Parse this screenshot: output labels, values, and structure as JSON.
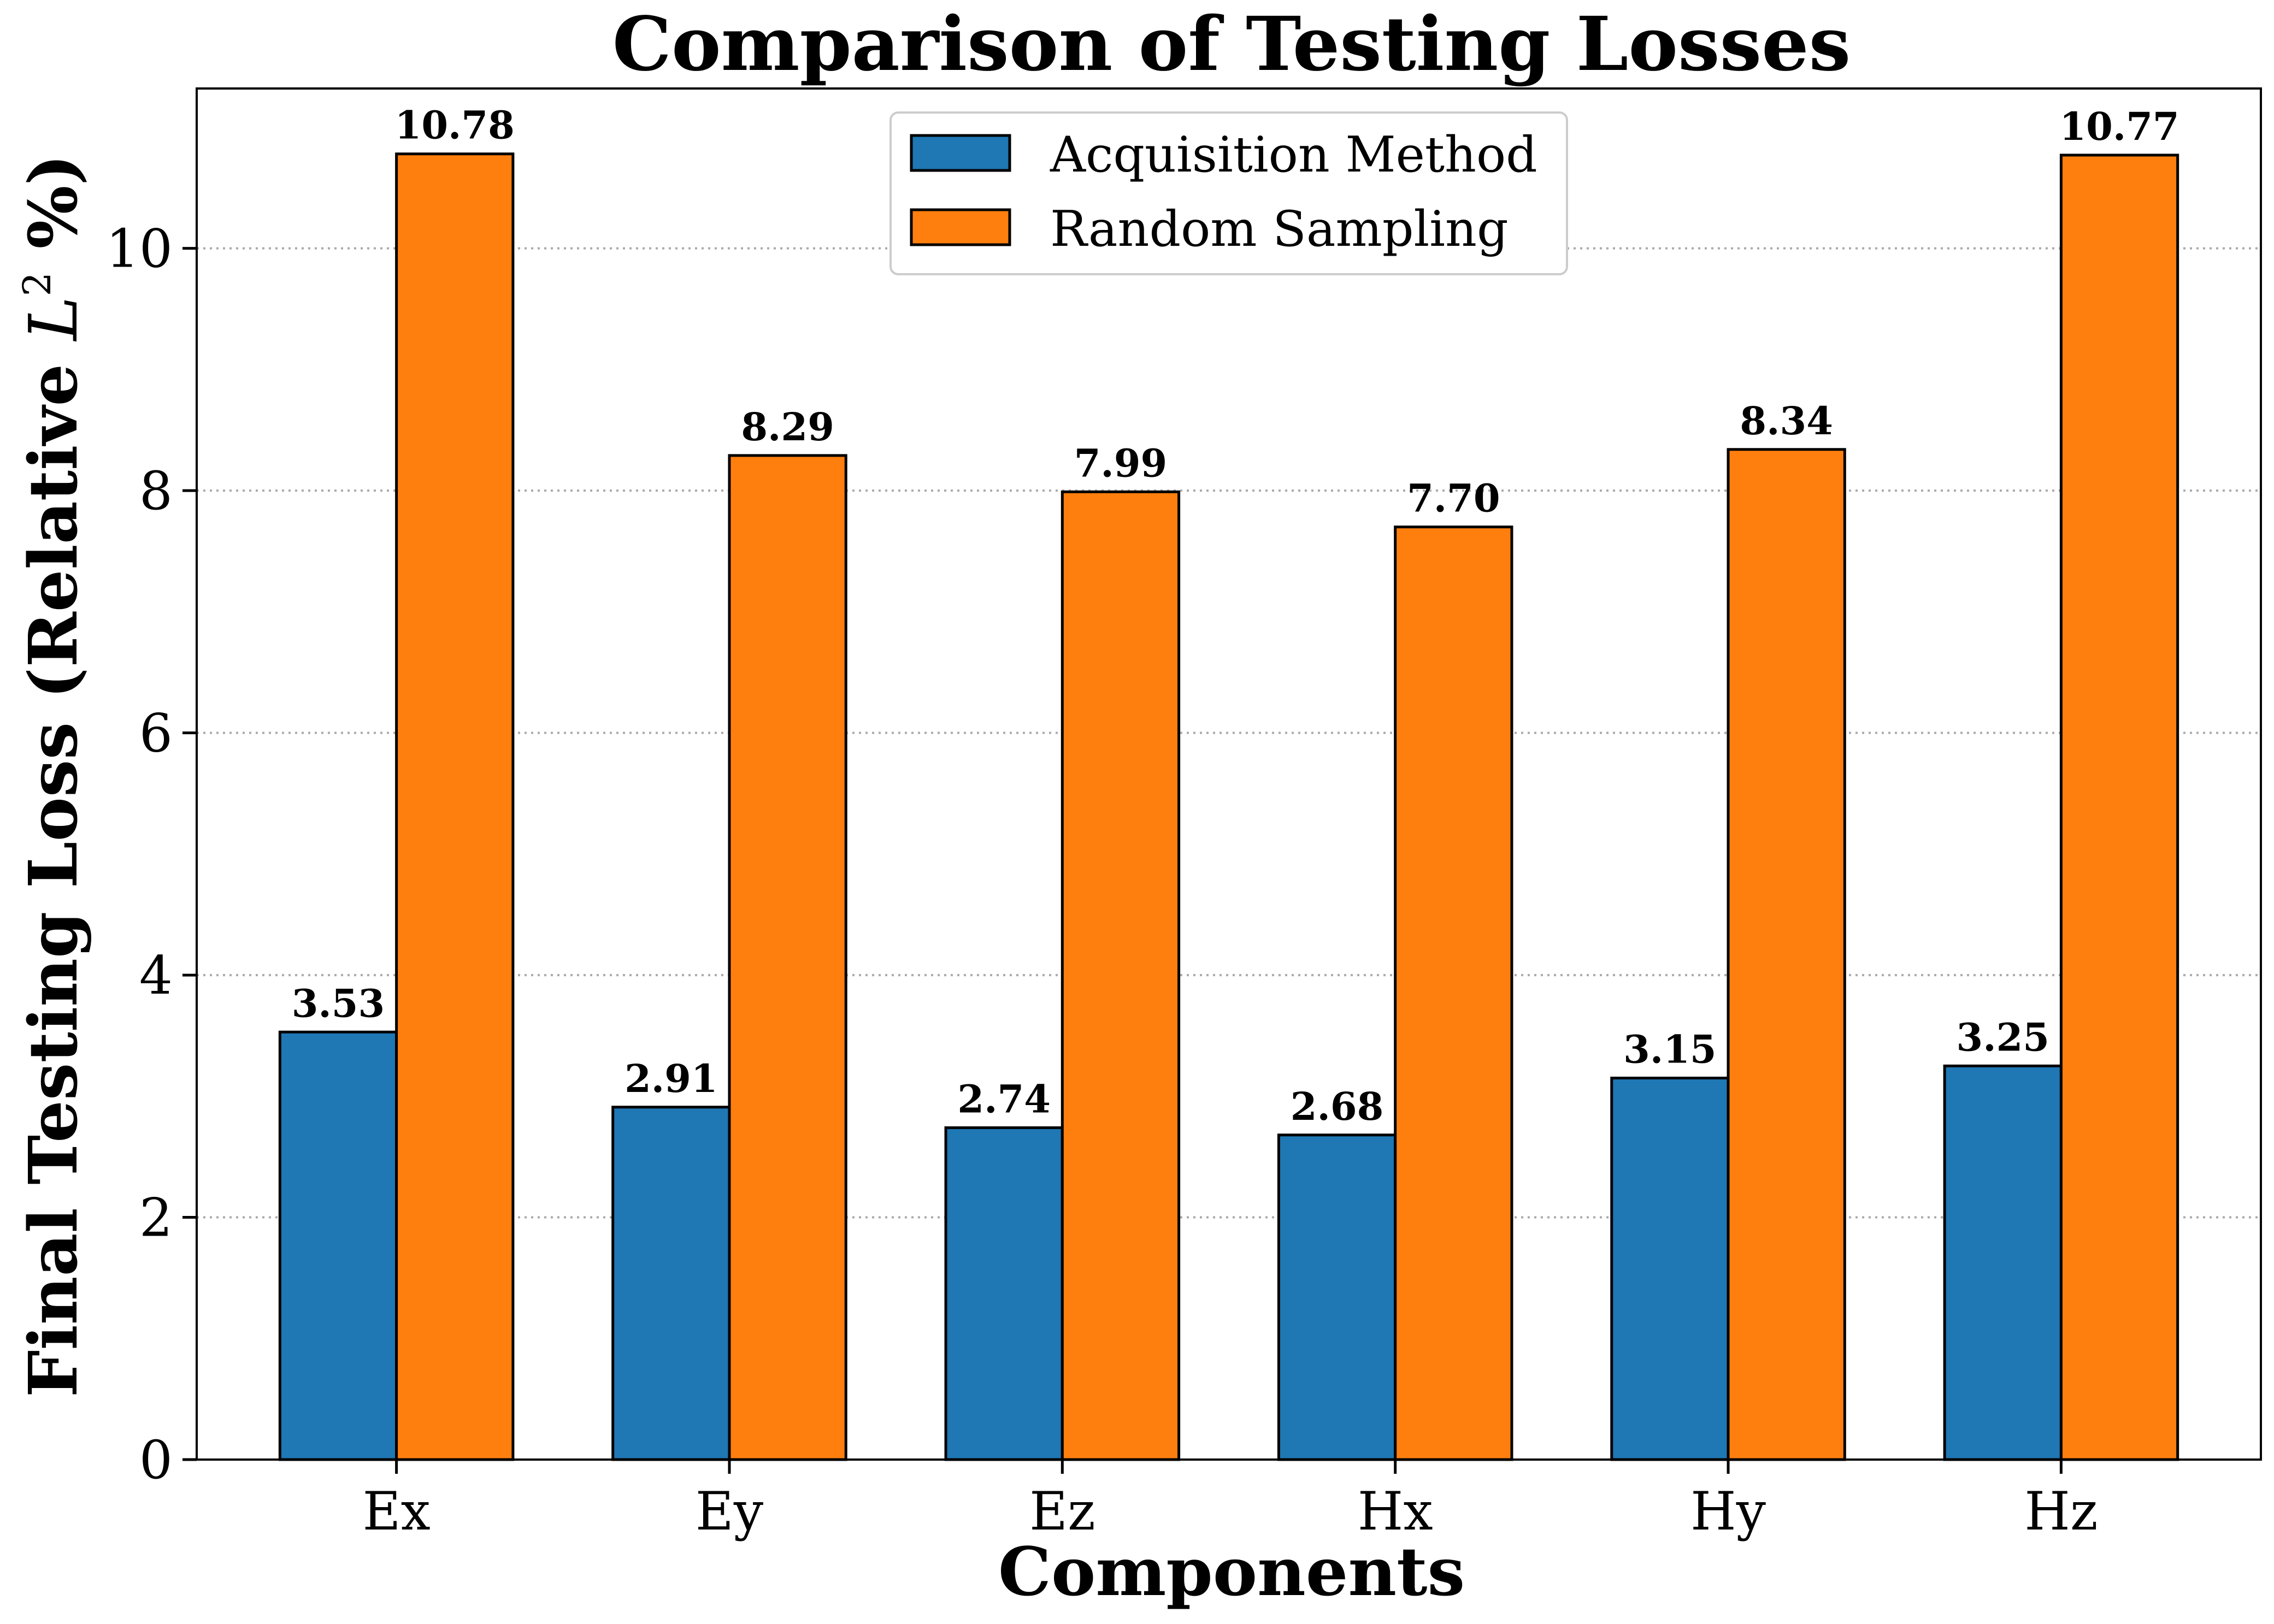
{
  "chart_data": {
    "type": "bar",
    "title": "Comparison of Testing Losses",
    "xlabel": "Components",
    "ylabel": "Final Testing Loss (Relative L² %)",
    "ylabel_parts": {
      "prefix": "Final Testing Loss (Relative ",
      "symbol": "L",
      "superscript": "2",
      "suffix": " %)"
    },
    "categories": [
      "Ex",
      "Ey",
      "Ez",
      "Hx",
      "Hy",
      "Hz"
    ],
    "series": [
      {
        "name": "Acquisition Method",
        "color": "#1f77b4",
        "values": [
          3.53,
          2.91,
          2.74,
          2.68,
          3.15,
          3.25
        ],
        "labels": [
          "3.53",
          "2.91",
          "2.74",
          "2.68",
          "3.15",
          "3.25"
        ]
      },
      {
        "name": "Random Sampling",
        "color": "#ff7f0e",
        "values": [
          10.78,
          8.29,
          7.99,
          7.7,
          8.34,
          10.77
        ],
        "labels": [
          "10.78",
          "8.29",
          "7.99",
          "7.70",
          "8.34",
          "10.77"
        ]
      }
    ],
    "ylim": [
      0,
      11.32
    ],
    "yticks": [
      0,
      2,
      4,
      6,
      8,
      10
    ],
    "grid": "y dotted",
    "legend_position": "top-center"
  }
}
